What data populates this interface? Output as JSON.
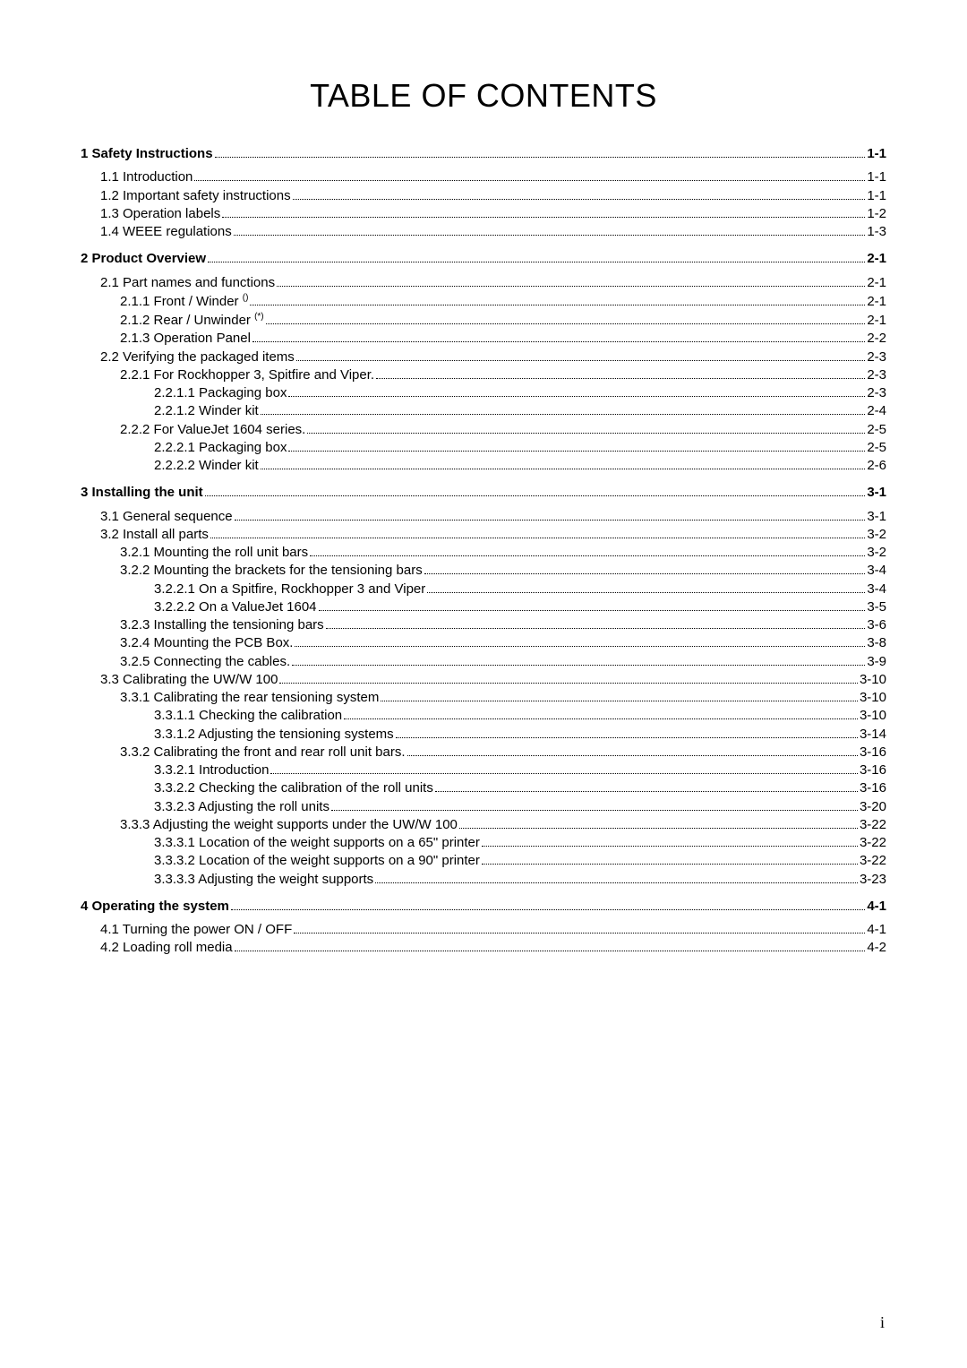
{
  "title": "TABLE OF CONTENTS",
  "page_footer": "i",
  "toc": [
    {
      "label": "1 Safety Instructions ",
      "page": " 1-1",
      "level": 0,
      "chapter": true
    },
    {
      "label": "1.1 Introduction",
      "page": " 1-1",
      "level": 1
    },
    {
      "label": "1.2 Important safety instructions ",
      "page": " 1-1",
      "level": 1
    },
    {
      "label": "1.3 Operation labels ",
      "page": " 1-2",
      "level": 1
    },
    {
      "label": "1.4 WEEE regulations ",
      "page": " 1-3",
      "level": 1
    },
    {
      "label": "2 Product Overview ",
      "page": " 2-1",
      "level": 0,
      "chapter": true
    },
    {
      "label": "2.1 Part names and functions ",
      "page": " 2-1",
      "level": 1
    },
    {
      "label": "2.1.1 Front / Winder ",
      "sup": "()",
      "page": " 2-1",
      "level": 2
    },
    {
      "label": "2.1.2 Rear / Unwinder ",
      "sup": "(*)",
      "page": " 2-1",
      "level": 2
    },
    {
      "label": "2.1.3 Operation Panel",
      "page": " 2-2",
      "level": 2
    },
    {
      "label": "2.2 Verifying the packaged items ",
      "page": " 2-3",
      "level": 1
    },
    {
      "label": "2.2.1 For Rockhopper 3, Spitfire and Viper. ",
      "page": " 2-3",
      "level": 2
    },
    {
      "label": "2.2.1.1 Packaging box",
      "page": " 2-3",
      "level": 3
    },
    {
      "label": "2.2.1.2 Winder kit",
      "page": " 2-4",
      "level": 3
    },
    {
      "label": "2.2.2 For ValueJet 1604 series.",
      "page": " 2-5",
      "level": 2
    },
    {
      "label": "2.2.2.1 Packaging box",
      "page": " 2-5",
      "level": 3
    },
    {
      "label": "2.2.2.2 Winder kit",
      "page": " 2-6",
      "level": 3
    },
    {
      "label": "3 Installing the unit",
      "page": " 3-1",
      "level": 0,
      "chapter": true
    },
    {
      "label": "3.1 General sequence",
      "page": " 3-1",
      "level": 1
    },
    {
      "label": "3.2 Install all parts ",
      "page": " 3-2",
      "level": 1
    },
    {
      "label": "3.2.1 Mounting the roll unit bars",
      "page": " 3-2",
      "level": 2
    },
    {
      "label": "3.2.2 Mounting the brackets for the tensioning bars",
      "page": " 3-4",
      "level": 2
    },
    {
      "label": "3.2.2.1 On a Spitfire, Rockhopper 3 and Viper",
      "page": " 3-4",
      "level": 3
    },
    {
      "label": "3.2.2.2 On a ValueJet 1604",
      "page": " 3-5",
      "level": 3
    },
    {
      "label": "3.2.3 Installing the tensioning bars ",
      "page": " 3-6",
      "level": 2
    },
    {
      "label": "3.2.4 Mounting the PCB Box.",
      "page": " 3-8",
      "level": 2
    },
    {
      "label": "3.2.5 Connecting the cables. ",
      "page": " 3-9",
      "level": 2
    },
    {
      "label": "3.3 Calibrating the UW/W 100",
      "page": " 3-10",
      "level": 1
    },
    {
      "label": "3.3.1 Calibrating the rear tensioning system ",
      "page": " 3-10",
      "level": 2
    },
    {
      "label": "3.3.1.1 Checking the calibration ",
      "page": " 3-10",
      "level": 3
    },
    {
      "label": "3.3.1.2 Adjusting the tensioning systems ",
      "page": " 3-14",
      "level": 3
    },
    {
      "label": "3.3.2 Calibrating the front and rear roll unit bars. ",
      "page": " 3-16",
      "level": 2
    },
    {
      "label": "3.3.2.1 Introduction",
      "page": " 3-16",
      "level": 3
    },
    {
      "label": "3.3.2.2 Checking the calibration of the roll units",
      "page": " 3-16",
      "level": 3
    },
    {
      "label": "3.3.2.3 Adjusting the roll units ",
      "page": " 3-20",
      "level": 3
    },
    {
      "label": "3.3.3 Adjusting the weight supports under the UW/W 100 ",
      "page": " 3-22",
      "level": 2
    },
    {
      "label": "3.3.3.1 Location of the weight supports on a 65\" printer ",
      "page": " 3-22",
      "level": 3
    },
    {
      "label": "3.3.3.2 Location of the weight supports on a 90\" printer ",
      "page": " 3-22",
      "level": 3
    },
    {
      "label": "3.3.3.3 Adjusting the weight supports",
      "page": " 3-23",
      "level": 3
    },
    {
      "label": "4 Operating the system",
      "page": " 4-1",
      "level": 0,
      "chapter": true
    },
    {
      "label": "4.1 Turning the power ON / OFF",
      "page": " 4-1",
      "level": 1
    },
    {
      "label": "4.2 Loading roll media ",
      "page": " 4-2",
      "level": 1
    }
  ]
}
